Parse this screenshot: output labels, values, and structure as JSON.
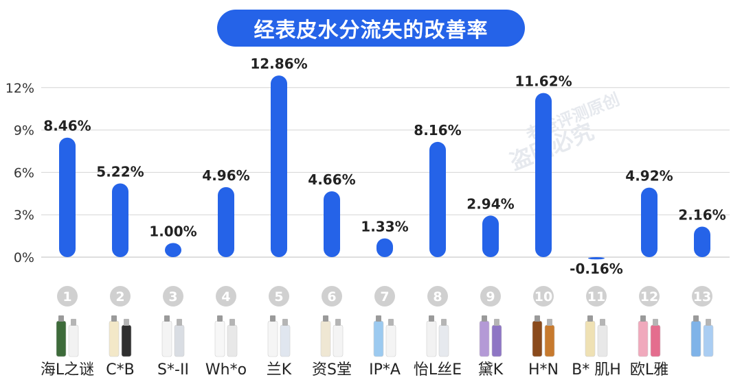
{
  "title": "经表皮水分流失的改善率",
  "watermark": "老爸评测原创 盗图必究",
  "colors": {
    "accent": "#2563e8",
    "badge": "#d0d0d0",
    "grid": "#d4d4d4"
  },
  "chart_data": {
    "type": "bar",
    "title": "经表皮水分流失的改善率",
    "xlabel": "",
    "ylabel": "",
    "ylim": [
      0,
      12.86
    ],
    "yticks": [
      "0%",
      "3%",
      "6%",
      "9%",
      "12%"
    ],
    "grid": true,
    "categories": [
      "1",
      "2",
      "3",
      "4",
      "5",
      "6",
      "7",
      "8",
      "9",
      "10",
      "11",
      "12",
      "13"
    ],
    "names": [
      "海L之谜",
      "C*B",
      "S*-II",
      "Wh*o",
      "兰K",
      "资S堂",
      "IP*A",
      "怡L丝E",
      "黛K",
      "H*N",
      "B* 肌H",
      "欧L雅",
      ""
    ],
    "values": [
      8.46,
      5.22,
      1.0,
      4.96,
      12.86,
      4.66,
      1.33,
      8.16,
      2.94,
      11.62,
      -0.16,
      4.92,
      2.16
    ],
    "data_labels": [
      "8.46%",
      "5.22%",
      "1.00%",
      "4.96%",
      "12.86%",
      "4.66%",
      "1.33%",
      "8.16%",
      "2.94%",
      "11.62%",
      "-0.16%",
      "4.92%",
      "2.16%"
    ]
  }
}
